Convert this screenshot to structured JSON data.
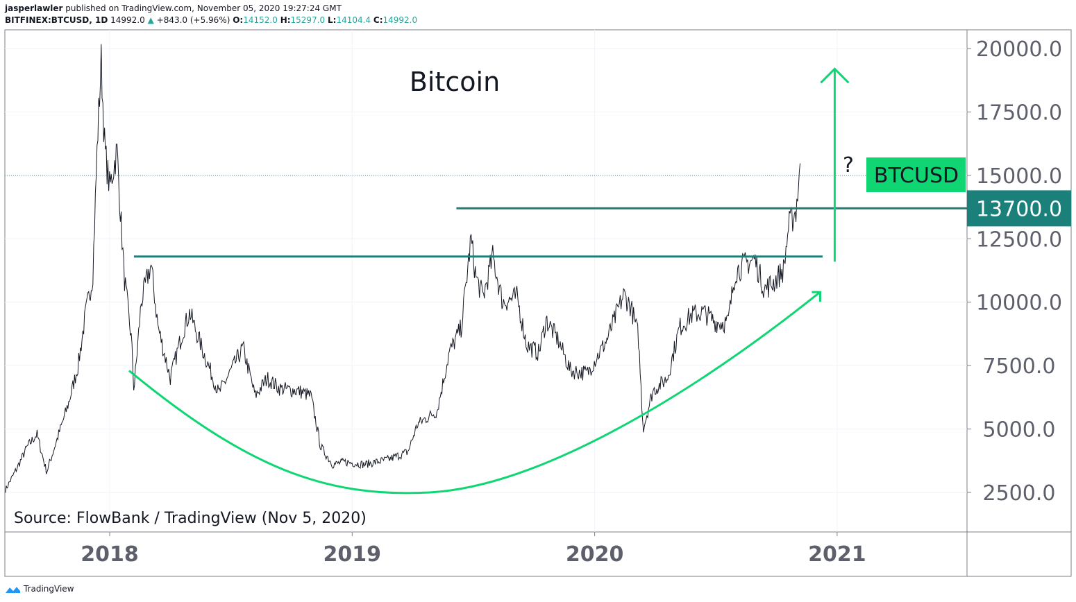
{
  "header": {
    "author": "jasperlawler",
    "published_text": "published on TradingView.com, November 05, 2020 19:27:24 GMT",
    "symbol": "BITFINEX:BTCUSD, 1D",
    "last": "14992.0",
    "change": "+843.0 (+5.96%)",
    "o_label": "O:",
    "o": "14152.0",
    "h_label": "H:",
    "h": "15297.0",
    "l_label": "L:",
    "l": "14104.4",
    "c_label": "C:",
    "c": "14992.0"
  },
  "footer": {
    "brand": "TradingView"
  },
  "colors": {
    "accent_green": "#0fd673",
    "level_teal": "#1b7f7a",
    "up": "#26a69a"
  },
  "chart_data": {
    "type": "line",
    "title": "Bitcoin",
    "source_note": "Source: FlowBank / TradingView (Nov 5, 2020)",
    "symbol_tag": "BTCUSD",
    "question_mark": "?",
    "ylim": [
      1000,
      20500
    ],
    "xlim": [
      2017.57,
      2021.53
    ],
    "yticks": [
      "2500.0",
      "5000.0",
      "7500.0",
      "10000.0",
      "12500.0",
      "15000.0",
      "17500.0",
      "20000.0"
    ],
    "ytick_values": [
      2500,
      5000,
      7500,
      10000,
      12500,
      15000,
      17500,
      20000
    ],
    "xticks": [
      "2018",
      "2019",
      "2020",
      "2021"
    ],
    "xtick_values": [
      2018,
      2019,
      2020,
      2021
    ],
    "highlight_level": {
      "label": "13700.0",
      "value": 13700,
      "from": 2019.43
    },
    "resistance_level": {
      "value": 11800,
      "from": 2018.1,
      "to": 2020.94
    },
    "last_price_line": 14992,
    "curve": {
      "start": [
        2018.08,
        7300
      ],
      "min": [
        2019.32,
        2500
      ],
      "end": [
        2020.93,
        10400
      ]
    },
    "arrow": {
      "x": 2020.99,
      "from": 11600,
      "to": 19200
    },
    "series": [
      {
        "name": "BTCUSD",
        "points": [
          [
            2017.57,
            2600
          ],
          [
            2017.62,
            3500
          ],
          [
            2017.66,
            4300
          ],
          [
            2017.7,
            4800
          ],
          [
            2017.74,
            3300
          ],
          [
            2017.78,
            4500
          ],
          [
            2017.83,
            6000
          ],
          [
            2017.87,
            7500
          ],
          [
            2017.9,
            9500
          ],
          [
            2017.93,
            11000
          ],
          [
            2017.95,
            16500
          ],
          [
            2017.965,
            19500
          ],
          [
            2017.98,
            16000
          ],
          [
            2018.0,
            14500
          ],
          [
            2018.03,
            16000
          ],
          [
            2018.06,
            11000
          ],
          [
            2018.09,
            8500
          ],
          [
            2018.1,
            6500
          ],
          [
            2018.13,
            10000
          ],
          [
            2018.17,
            11500
          ],
          [
            2018.2,
            9000
          ],
          [
            2018.25,
            7000
          ],
          [
            2018.3,
            8800
          ],
          [
            2018.33,
            9600
          ],
          [
            2018.38,
            8200
          ],
          [
            2018.45,
            6400
          ],
          [
            2018.5,
            7300
          ],
          [
            2018.55,
            8200
          ],
          [
            2018.6,
            6300
          ],
          [
            2018.65,
            7000
          ],
          [
            2018.7,
            6600
          ],
          [
            2018.78,
            6500
          ],
          [
            2018.83,
            6300
          ],
          [
            2018.87,
            4300
          ],
          [
            2018.92,
            3600
          ],
          [
            2018.97,
            3700
          ],
          [
            2019.05,
            3600
          ],
          [
            2019.15,
            3800
          ],
          [
            2019.23,
            4100
          ],
          [
            2019.27,
            5200
          ],
          [
            2019.35,
            5700
          ],
          [
            2019.4,
            8000
          ],
          [
            2019.45,
            9000
          ],
          [
            2019.49,
            12500
          ],
          [
            2019.51,
            11000
          ],
          [
            2019.54,
            10200
          ],
          [
            2019.58,
            11800
          ],
          [
            2019.62,
            10000
          ],
          [
            2019.68,
            10200
          ],
          [
            2019.72,
            8300
          ],
          [
            2019.77,
            8000
          ],
          [
            2019.8,
            9300
          ],
          [
            2019.85,
            8500
          ],
          [
            2019.9,
            7300
          ],
          [
            2019.97,
            7200
          ],
          [
            2020.05,
            8500
          ],
          [
            2020.12,
            10300
          ],
          [
            2020.15,
            9800
          ],
          [
            2020.18,
            8700
          ],
          [
            2020.2,
            5000
          ],
          [
            2020.24,
            6500
          ],
          [
            2020.3,
            7000
          ],
          [
            2020.35,
            9000
          ],
          [
            2020.4,
            9500
          ],
          [
            2020.45,
            9600
          ],
          [
            2020.5,
            9200
          ],
          [
            2020.55,
            9200
          ],
          [
            2020.58,
            11200
          ],
          [
            2020.62,
            11500
          ],
          [
            2020.66,
            11700
          ],
          [
            2020.7,
            10500
          ],
          [
            2020.74,
            10800
          ],
          [
            2020.78,
            11300
          ],
          [
            2020.8,
            13000
          ],
          [
            2020.83,
            13600
          ],
          [
            2020.845,
            15100
          ],
          [
            2020.848,
            14992
          ]
        ]
      }
    ]
  }
}
